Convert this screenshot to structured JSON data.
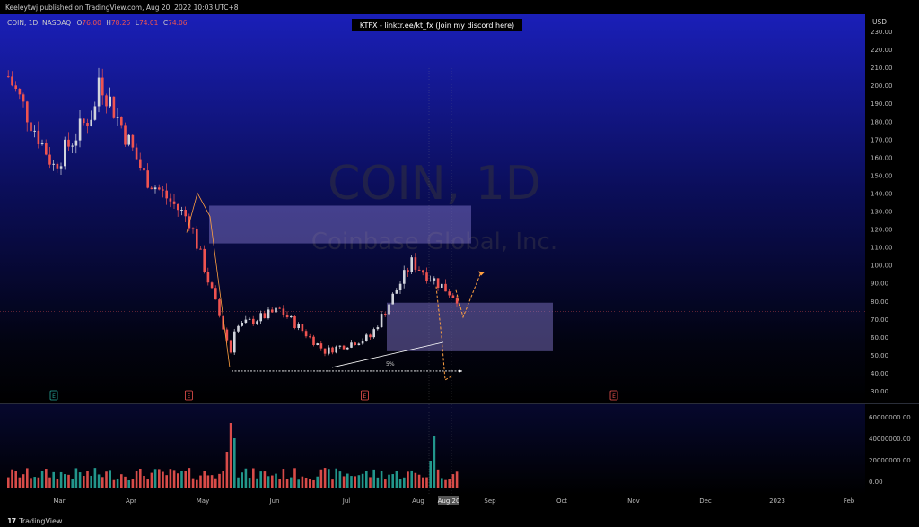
{
  "header": {
    "publisher_line": "Keeleytwj published on TradingView.com, Aug 20, 2022 10:03 UTC+8"
  },
  "legend": {
    "symbol_line": "COIN, 1D, NASDAQ",
    "open_label": "O",
    "open": "76.00",
    "high_label": "H",
    "high": "78.25",
    "low_label": "L",
    "low": "74.01",
    "close_label": "C",
    "close": "74.06"
  },
  "banner": "KTFX - linktr.ee/kt_fx (Join my discord here)",
  "watermark": {
    "symbol": "COIN, 1D",
    "company": "Coinbase Global, Inc."
  },
  "currency": "USD",
  "annotation_label": "5%",
  "footer": {
    "brand": "TradingView",
    "logo_glyph": "17"
  },
  "event_markers": [
    {
      "month_pos": 1.0,
      "letter": "E",
      "color": "#26a69a"
    },
    {
      "month_pos": 2.88,
      "letter": "E",
      "color": "#ef5350"
    },
    {
      "month_pos": 5.33,
      "letter": "E",
      "color": "#ef5350"
    },
    {
      "month_pos": 8.8,
      "letter": "E",
      "color": "#ef5350"
    }
  ],
  "colors": {
    "up": "#d1d4dc",
    "down": "#ef5350",
    "vol_up": "#26a69a",
    "vol_down": "#ef5350",
    "zone": "#8c7fd6",
    "arrow": "#ffa040",
    "line": "#ffffff"
  },
  "chart_data": {
    "type": "candlestick",
    "y_axis": {
      "range": [
        30,
        230
      ],
      "ticks": [
        "230.00",
        "220.00",
        "210.00",
        "200.00",
        "190.00",
        "180.00",
        "170.00",
        "160.00",
        "150.00",
        "140.00",
        "130.00",
        "120.00",
        "110.00",
        "100.00",
        "90.00",
        "80.00",
        "70.00",
        "60.00",
        "50.00",
        "40.00",
        "30.00"
      ],
      "current_price": "74.06"
    },
    "volume_axis": {
      "ticks": [
        "60000000.00",
        "40000000.00",
        "20000000.00",
        "0.00"
      ]
    },
    "x_axis": {
      "labels": [
        "Mar",
        "Apr",
        "May",
        "Jun",
        "Jul",
        "Aug",
        "Sep",
        "Oct",
        "Nov",
        "Dec",
        "2023",
        "Feb"
      ],
      "highlighted": "Aug 20"
    },
    "candles_by_month": [
      {
        "month": "Feb/Mar",
        "from": 205,
        "to": 155
      },
      {
        "month": "Mar",
        "from": 155,
        "to": 190
      },
      {
        "month": "Apr",
        "from": 205,
        "to": 150
      },
      {
        "month": "Apr/May",
        "from": 150,
        "to": 125
      },
      {
        "month": "May",
        "from": 125,
        "to": 45
      },
      {
        "month": "May/Jun",
        "from": 65,
        "to": 75
      },
      {
        "month": "Jun",
        "from": 75,
        "to": 52
      },
      {
        "month": "Jul",
        "from": 52,
        "to": 60
      },
      {
        "month": "Jul/Aug",
        "from": 60,
        "to": 105
      },
      {
        "month": "Aug",
        "from": 100,
        "to": 80
      }
    ],
    "zones": [
      {
        "from_price": 112,
        "to_price": 133
      },
      {
        "from_price": 52,
        "to_price": 79
      }
    ],
    "projection": [
      86,
      71,
      96
    ],
    "alt_projection": [
      36
    ],
    "support_level": 41
  }
}
